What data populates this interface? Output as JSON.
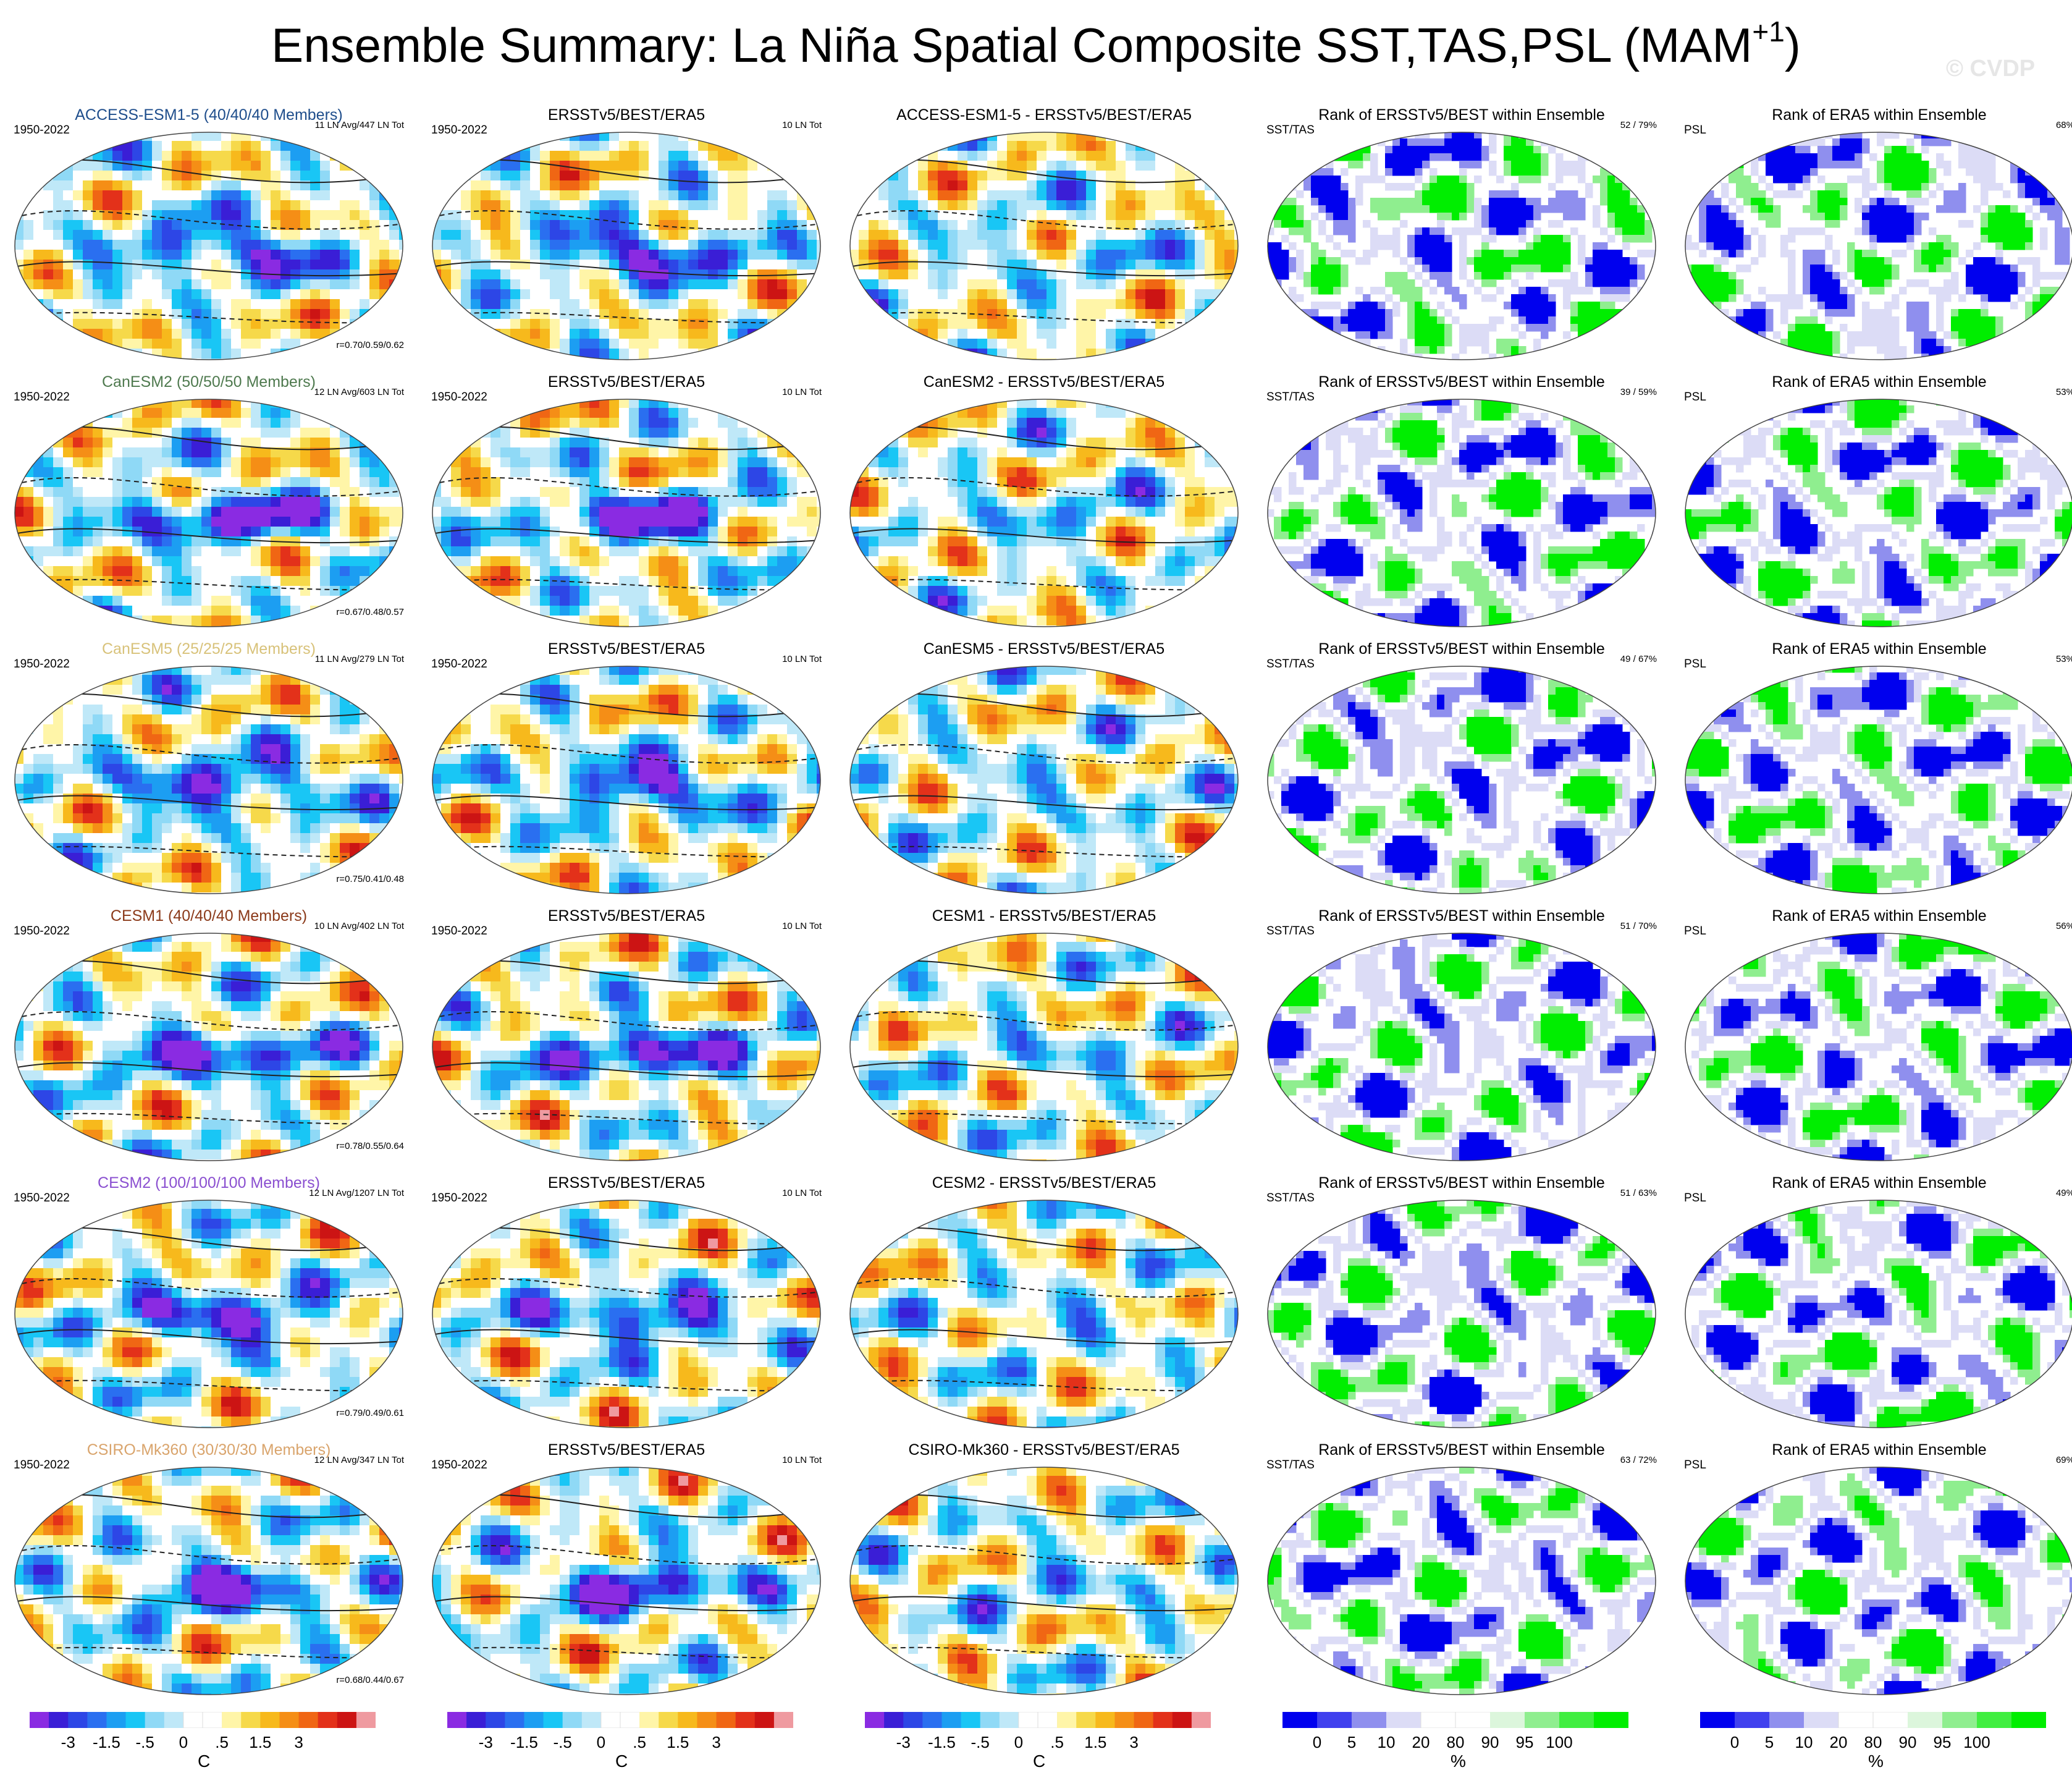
{
  "header": {
    "title_main": "Ensemble Summary: La Niña Spatial Composite SST,TAS,PSL (MAM",
    "title_sup": "+1",
    "title_close": ")",
    "watermark": "© CVDP"
  },
  "colors": {
    "diverging": [
      "#8a2be2",
      "#3a1ed6",
      "#2d46e6",
      "#2a6ff0",
      "#1c9ef2",
      "#19c6f5",
      "#8fd9f6",
      "#bfe8f8",
      "#ffffff",
      "#ffffff",
      "#fff5a8",
      "#f6d94a",
      "#f7b91c",
      "#f58e16",
      "#f06614",
      "#e3311a",
      "#cc1414",
      "#ef9aa0"
    ],
    "rank": [
      "#0000ee",
      "#4040ee",
      "#8f8fee",
      "#dcdcf6",
      "#ffffff",
      "#ffffff",
      "#dcf6dc",
      "#8fee8f",
      "#40ee40",
      "#00ee00"
    ]
  },
  "chart_data": [
    {
      "type": "heatmap",
      "row": 0,
      "col": 0,
      "title": "ACCESS-ESM1-5 (40/40/40 Members)",
      "title_color": "#1f4e8c",
      "left_label": "1950-2022",
      "right_label": "11 LN Avg/447 LN Tot",
      "corr": "r=0.70/0.59/0.62",
      "variable": "SST/TAS/PSL composite",
      "units": "C"
    },
    {
      "type": "heatmap",
      "row": 0,
      "col": 1,
      "title": "ERSSTv5/BEST/ERA5",
      "left_label": "1950-2022",
      "right_label": "10 LN Tot",
      "variable": "SST/TAS/PSL composite",
      "units": "C"
    },
    {
      "type": "heatmap",
      "row": 0,
      "col": 2,
      "title": "ACCESS-ESM1-5 - ERSSTv5/BEST/ERA5",
      "variable": "difference",
      "units": "C"
    },
    {
      "type": "heatmap",
      "row": 0,
      "col": 3,
      "title": "Rank of ERSSTv5/BEST within Ensemble",
      "left_label": "SST/TAS",
      "right_label": "52 /  79%",
      "variable": "rank",
      "units": "%"
    },
    {
      "type": "heatmap",
      "row": 0,
      "col": 4,
      "title": "Rank of ERA5 within Ensemble",
      "left_label": "PSL",
      "right_label": "68%",
      "variable": "rank",
      "units": "%"
    },
    {
      "type": "heatmap",
      "row": 1,
      "col": 0,
      "title": "CanESM2 (50/50/50 Members)",
      "title_color": "#4f7a4f",
      "left_label": "1950-2022",
      "right_label": "12 LN Avg/603 LN Tot",
      "corr": "r=0.67/0.48/0.57",
      "variable": "SST/TAS/PSL composite",
      "units": "C"
    },
    {
      "type": "heatmap",
      "row": 1,
      "col": 1,
      "title": "ERSSTv5/BEST/ERA5",
      "left_label": "1950-2022",
      "right_label": "10 LN Tot",
      "variable": "SST/TAS/PSL composite",
      "units": "C"
    },
    {
      "type": "heatmap",
      "row": 1,
      "col": 2,
      "title": "CanESM2 - ERSSTv5/BEST/ERA5",
      "variable": "difference",
      "units": "C"
    },
    {
      "type": "heatmap",
      "row": 1,
      "col": 3,
      "title": "Rank of ERSSTv5/BEST within Ensemble",
      "left_label": "SST/TAS",
      "right_label": "39 /  59%",
      "variable": "rank",
      "units": "%"
    },
    {
      "type": "heatmap",
      "row": 1,
      "col": 4,
      "title": "Rank of ERA5 within Ensemble",
      "left_label": "PSL",
      "right_label": "53%",
      "variable": "rank",
      "units": "%"
    },
    {
      "type": "heatmap",
      "row": 2,
      "col": 0,
      "title": "CanESM5 (25/25/25 Members)",
      "title_color": "#d8c27a",
      "left_label": "1950-2022",
      "right_label": "11 LN Avg/279 LN Tot",
      "corr": "r=0.75/0.41/0.48",
      "variable": "SST/TAS/PSL composite",
      "units": "C"
    },
    {
      "type": "heatmap",
      "row": 2,
      "col": 1,
      "title": "ERSSTv5/BEST/ERA5",
      "left_label": "1950-2022",
      "right_label": "10 LN Tot",
      "variable": "SST/TAS/PSL composite",
      "units": "C"
    },
    {
      "type": "heatmap",
      "row": 2,
      "col": 2,
      "title": "CanESM5 - ERSSTv5/BEST/ERA5",
      "variable": "difference",
      "units": "C"
    },
    {
      "type": "heatmap",
      "row": 2,
      "col": 3,
      "title": "Rank of ERSSTv5/BEST within Ensemble",
      "left_label": "SST/TAS",
      "right_label": "49 /  67%",
      "variable": "rank",
      "units": "%"
    },
    {
      "type": "heatmap",
      "row": 2,
      "col": 4,
      "title": "Rank of ERA5 within Ensemble",
      "left_label": "PSL",
      "right_label": "53%",
      "variable": "rank",
      "units": "%"
    },
    {
      "type": "heatmap",
      "row": 3,
      "col": 0,
      "title": "CESM1 (40/40/40 Members)",
      "title_color": "#8b3a1a",
      "left_label": "1950-2022",
      "right_label": "10 LN Avg/402 LN Tot",
      "corr": "r=0.78/0.55/0.64",
      "variable": "SST/TAS/PSL composite",
      "units": "C"
    },
    {
      "type": "heatmap",
      "row": 3,
      "col": 1,
      "title": "ERSSTv5/BEST/ERA5",
      "left_label": "1950-2022",
      "right_label": "10 LN Tot",
      "variable": "SST/TAS/PSL composite",
      "units": "C"
    },
    {
      "type": "heatmap",
      "row": 3,
      "col": 2,
      "title": "CESM1 - ERSSTv5/BEST/ERA5",
      "variable": "difference",
      "units": "C"
    },
    {
      "type": "heatmap",
      "row": 3,
      "col": 3,
      "title": "Rank of ERSSTv5/BEST within Ensemble",
      "left_label": "SST/TAS",
      "right_label": "51 /  70%",
      "variable": "rank",
      "units": "%"
    },
    {
      "type": "heatmap",
      "row": 3,
      "col": 4,
      "title": "Rank of ERA5 within Ensemble",
      "left_label": "PSL",
      "right_label": "56%",
      "variable": "rank",
      "units": "%"
    },
    {
      "type": "heatmap",
      "row": 4,
      "col": 0,
      "title": "CESM2 (100/100/100 Members)",
      "title_color": "#8a4fd0",
      "left_label": "1950-2022",
      "right_label": "12 LN Avg/1207 LN Tot",
      "corr": "r=0.79/0.49/0.61",
      "variable": "SST/TAS/PSL composite",
      "units": "C"
    },
    {
      "type": "heatmap",
      "row": 4,
      "col": 1,
      "title": "ERSSTv5/BEST/ERA5",
      "left_label": "1950-2022",
      "right_label": "10 LN Tot",
      "variable": "SST/TAS/PSL composite",
      "units": "C"
    },
    {
      "type": "heatmap",
      "row": 4,
      "col": 2,
      "title": "CESM2 - ERSSTv5/BEST/ERA5",
      "variable": "difference",
      "units": "C"
    },
    {
      "type": "heatmap",
      "row": 4,
      "col": 3,
      "title": "Rank of ERSSTv5/BEST within Ensemble",
      "left_label": "SST/TAS",
      "right_label": "51 /  63%",
      "variable": "rank",
      "units": "%"
    },
    {
      "type": "heatmap",
      "row": 4,
      "col": 4,
      "title": "Rank of ERA5 within Ensemble",
      "left_label": "PSL",
      "right_label": "49%",
      "variable": "rank",
      "units": "%"
    },
    {
      "type": "heatmap",
      "row": 5,
      "col": 0,
      "title": "CSIRO-Mk360 (30/30/30 Members)",
      "title_color": "#d9a46c",
      "left_label": "1950-2022",
      "right_label": "12 LN Avg/347 LN Tot",
      "corr": "r=0.68/0.44/0.67",
      "variable": "SST/TAS/PSL composite",
      "units": "C"
    },
    {
      "type": "heatmap",
      "row": 5,
      "col": 1,
      "title": "ERSSTv5/BEST/ERA5",
      "left_label": "1950-2022",
      "right_label": "10 LN Tot",
      "variable": "SST/TAS/PSL composite",
      "units": "C"
    },
    {
      "type": "heatmap",
      "row": 5,
      "col": 2,
      "title": "CSIRO-Mk360 - ERSSTv5/BEST/ERA5",
      "variable": "difference",
      "units": "C"
    },
    {
      "type": "heatmap",
      "row": 5,
      "col": 3,
      "title": "Rank of ERSSTv5/BEST within Ensemble",
      "left_label": "SST/TAS",
      "right_label": "63 /  72%",
      "variable": "rank",
      "units": "%"
    },
    {
      "type": "heatmap",
      "row": 5,
      "col": 4,
      "title": "Rank of ERA5 within Ensemble",
      "left_label": "PSL",
      "right_label": "69%",
      "variable": "rank",
      "units": "%"
    }
  ],
  "colorbars": [
    {
      "col": 0,
      "kind": "diverging",
      "ticks": [
        "-3",
        "-1.5",
        "-.5",
        "0",
        ".5",
        "1.5",
        "3"
      ],
      "unit": "C"
    },
    {
      "col": 1,
      "kind": "diverging",
      "ticks": [
        "-3",
        "-1.5",
        "-.5",
        "0",
        ".5",
        "1.5",
        "3"
      ],
      "unit": "C"
    },
    {
      "col": 2,
      "kind": "diverging",
      "ticks": [
        "-3",
        "-1.5",
        "-.5",
        "0",
        ".5",
        "1.5",
        "3"
      ],
      "unit": "C"
    },
    {
      "col": 3,
      "kind": "rank",
      "ticks": [
        "0",
        "5",
        "10",
        "20",
        "80",
        "90",
        "95",
        "100"
      ],
      "unit": "%"
    },
    {
      "col": 4,
      "kind": "rank",
      "ticks": [
        "0",
        "5",
        "10",
        "20",
        "80",
        "90",
        "95",
        "100"
      ],
      "unit": "%"
    }
  ]
}
